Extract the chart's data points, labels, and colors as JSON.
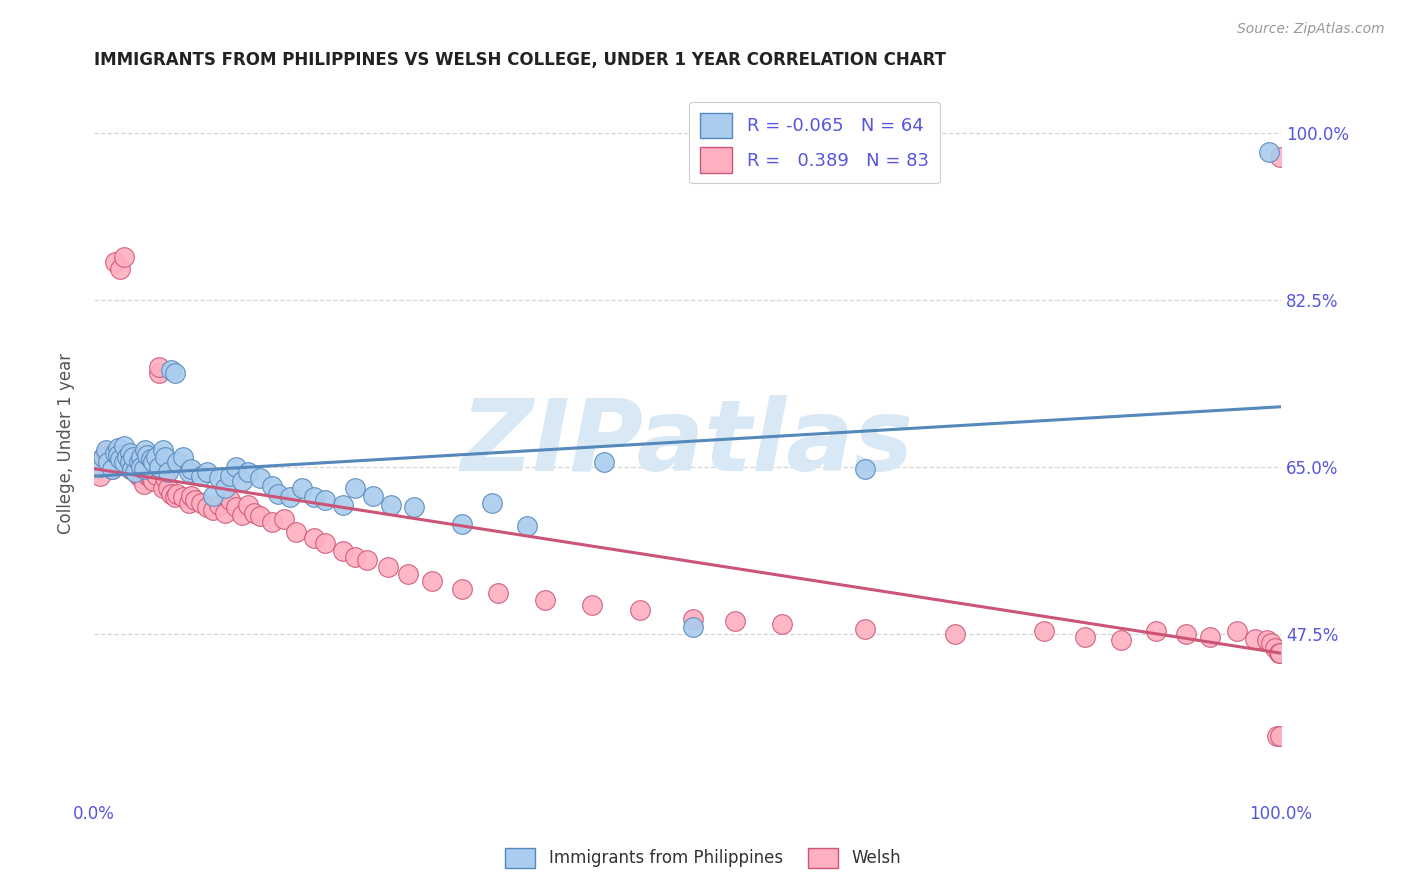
{
  "title": "IMMIGRANTS FROM PHILIPPINES VS WELSH COLLEGE, UNDER 1 YEAR CORRELATION CHART",
  "source": "Source: ZipAtlas.com",
  "ylabel": "College, Under 1 year",
  "ytick_labels": [
    "47.5%",
    "65.0%",
    "82.5%",
    "100.0%"
  ],
  "ytick_values": [
    0.475,
    0.65,
    0.825,
    1.0
  ],
  "legend_label_blue": "R = -0.065   N = 64",
  "legend_label_pink": "R =   0.389   N = 83",
  "title_color": "#222222",
  "source_color": "#999999",
  "axis_label_color": "#5555dd",
  "grid_color": "#cccccc",
  "background_color": "#ffffff",
  "blue_scatter_color": "#aaccee",
  "blue_line_color": "#5588bb",
  "pink_scatter_color": "#ffb0c0",
  "pink_line_color": "#cc5577",
  "watermark_text": "ZIPatlas",
  "watermark_color": "#d8e8f5",
  "xlim": [
    0.0,
    1.0
  ],
  "ylim": [
    0.3,
    1.05
  ],
  "blue_x": [
    0.005,
    0.008,
    0.01,
    0.012,
    0.015,
    0.018,
    0.02,
    0.02,
    0.022,
    0.025,
    0.025,
    0.028,
    0.03,
    0.03,
    0.032,
    0.033,
    0.035,
    0.038,
    0.04,
    0.04,
    0.042,
    0.043,
    0.045,
    0.048,
    0.05,
    0.052,
    0.055,
    0.058,
    0.06,
    0.062,
    0.065,
    0.068,
    0.07,
    0.075,
    0.08,
    0.082,
    0.09,
    0.095,
    0.1,
    0.105,
    0.11,
    0.115,
    0.12,
    0.125,
    0.13,
    0.14,
    0.15,
    0.155,
    0.165,
    0.175,
    0.185,
    0.195,
    0.21,
    0.22,
    0.235,
    0.25,
    0.27,
    0.31,
    0.335,
    0.365,
    0.43,
    0.505,
    0.65,
    0.99
  ],
  "blue_y": [
    0.65,
    0.66,
    0.668,
    0.655,
    0.648,
    0.665,
    0.67,
    0.662,
    0.658,
    0.672,
    0.655,
    0.66,
    0.665,
    0.655,
    0.648,
    0.66,
    0.645,
    0.655,
    0.66,
    0.65,
    0.648,
    0.668,
    0.662,
    0.658,
    0.655,
    0.66,
    0.65,
    0.668,
    0.66,
    0.645,
    0.752,
    0.748,
    0.655,
    0.66,
    0.645,
    0.648,
    0.64,
    0.645,
    0.62,
    0.638,
    0.628,
    0.64,
    0.65,
    0.635,
    0.645,
    0.638,
    0.63,
    0.622,
    0.618,
    0.628,
    0.618,
    0.615,
    0.61,
    0.628,
    0.62,
    0.61,
    0.608,
    0.59,
    0.612,
    0.588,
    0.655,
    0.482,
    0.648,
    0.98
  ],
  "pink_x": [
    0.005,
    0.008,
    0.01,
    0.012,
    0.015,
    0.018,
    0.018,
    0.02,
    0.022,
    0.022,
    0.025,
    0.025,
    0.028,
    0.03,
    0.032,
    0.035,
    0.038,
    0.04,
    0.042,
    0.045,
    0.048,
    0.05,
    0.052,
    0.055,
    0.055,
    0.058,
    0.06,
    0.062,
    0.065,
    0.068,
    0.07,
    0.075,
    0.08,
    0.082,
    0.085,
    0.09,
    0.095,
    0.1,
    0.105,
    0.11,
    0.115,
    0.12,
    0.125,
    0.13,
    0.135,
    0.14,
    0.15,
    0.16,
    0.17,
    0.185,
    0.195,
    0.21,
    0.22,
    0.23,
    0.248,
    0.265,
    0.285,
    0.31,
    0.34,
    0.38,
    0.42,
    0.46,
    0.505,
    0.54,
    0.58,
    0.65,
    0.725,
    0.8,
    0.835,
    0.865,
    0.895,
    0.92,
    0.94,
    0.963,
    0.978,
    0.988,
    0.992,
    0.995,
    0.997,
    0.998,
    0.999,
    0.999,
    0.999
  ],
  "pink_y": [
    0.64,
    0.66,
    0.665,
    0.655,
    0.648,
    0.66,
    0.865,
    0.665,
    0.66,
    0.858,
    0.87,
    0.652,
    0.655,
    0.648,
    0.655,
    0.645,
    0.64,
    0.638,
    0.632,
    0.642,
    0.638,
    0.635,
    0.642,
    0.748,
    0.755,
    0.628,
    0.638,
    0.628,
    0.622,
    0.618,
    0.622,
    0.618,
    0.612,
    0.62,
    0.615,
    0.612,
    0.608,
    0.605,
    0.61,
    0.602,
    0.615,
    0.608,
    0.6,
    0.61,
    0.602,
    0.598,
    0.592,
    0.595,
    0.582,
    0.575,
    0.57,
    0.562,
    0.555,
    0.552,
    0.545,
    0.538,
    0.53,
    0.522,
    0.518,
    0.51,
    0.505,
    0.5,
    0.49,
    0.488,
    0.485,
    0.48,
    0.475,
    0.478,
    0.472,
    0.468,
    0.478,
    0.475,
    0.472,
    0.478,
    0.47,
    0.468,
    0.465,
    0.46,
    0.368,
    0.455,
    0.368,
    0.455,
    0.975
  ]
}
